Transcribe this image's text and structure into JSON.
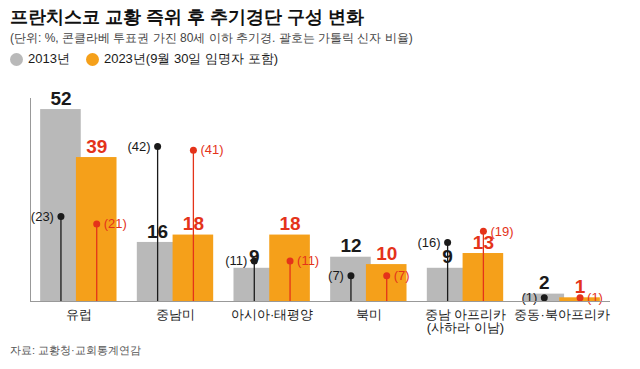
{
  "chart_data": {
    "type": "bar",
    "title": "프란치스코 교황 즉위 후 추기경단 구성 변화",
    "subtitle": "(단위: %, 콘클라베 투표권 가진 80세 이하 추기경. 괄호는 가톨릭 신자 비율)",
    "source": "자료: 교황청·교회통계연감",
    "categories": [
      "유럽",
      "중남미",
      "아시아·태평양",
      "북미",
      "중남 아프리카\n(사하라 이남)",
      "중동·북아프리카"
    ],
    "series": [
      {
        "name": "2013년",
        "color": "#b9b9b9",
        "values": [
          52,
          16,
          9,
          12,
          9,
          2
        ],
        "catholic_share": [
          23,
          42,
          11,
          7,
          16,
          1
        ],
        "catholic_share_labels": [
          "(23)",
          "(42)",
          "(11)",
          "(7)",
          "(16)",
          "(1)"
        ]
      },
      {
        "name": "2023년(9월 30일 임명자 포함)",
        "color": "#f5a01a",
        "values": [
          39,
          18,
          18,
          10,
          13,
          1
        ],
        "catholic_share": [
          21,
          41,
          11,
          7,
          19,
          1
        ],
        "catholic_share_labels": [
          "(21)",
          "(41)",
          "(11)",
          "(7)",
          "(19)",
          "(1)"
        ]
      }
    ],
    "ylim": [
      0,
      55
    ],
    "yticks": [],
    "tick_labels": "x",
    "data_labels": true,
    "legend": "top"
  }
}
